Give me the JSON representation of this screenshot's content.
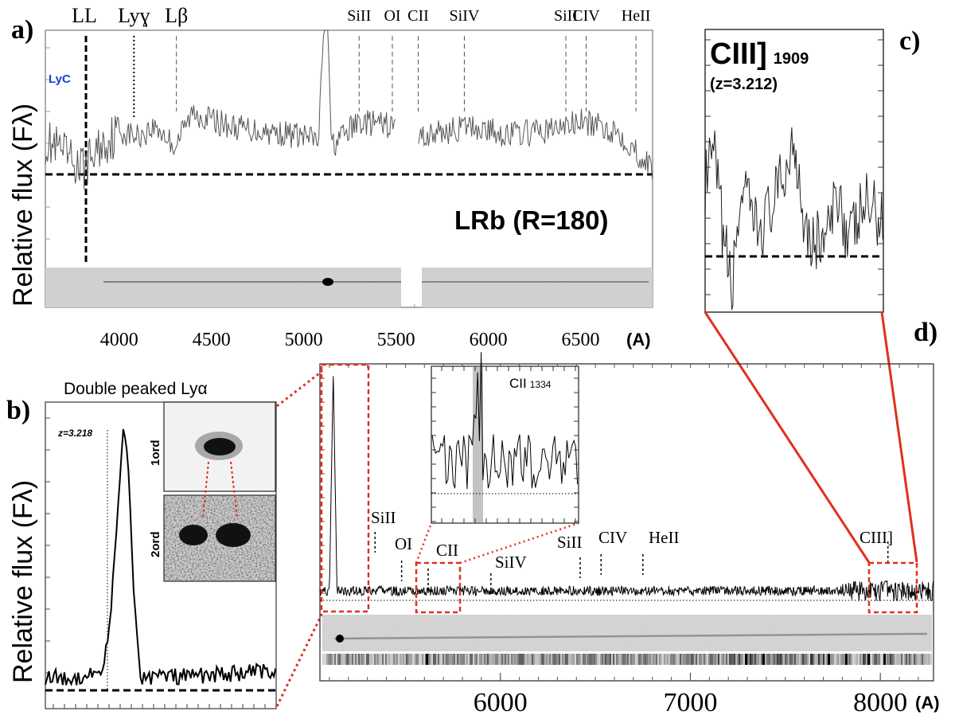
{
  "panel_labels": {
    "a": "a)",
    "b": "b)",
    "c": "c)",
    "d": "d)"
  },
  "y_axis_label": "Relative flux (Fλ)",
  "chart_data": [
    {
      "id": "a",
      "type": "line",
      "xlim": [
        3600,
        6890
      ],
      "xticks": [
        4000,
        4500,
        5000,
        5500,
        6000,
        6500
      ],
      "xtick_labels": [
        "4000",
        "4500",
        "5000",
        "5500",
        "6000",
        "6500"
      ],
      "x_unit": "(A)",
      "annotation": "LRb (R=180)",
      "lyc_label": "LyC",
      "lines": [
        {
          "label": "LL",
          "x": 3820,
          "style": "thick"
        },
        {
          "label": "Lyɣ",
          "x": 4080,
          "style": "dotted"
        },
        {
          "label": "Lβ",
          "x": 4310,
          "style": "dashed"
        },
        {
          "label": "SiII",
          "x": 5300,
          "style": "dashed"
        },
        {
          "label": "OI",
          "x": 5480,
          "style": "dashed"
        },
        {
          "label": "CII",
          "x": 5620,
          "style": "dashed"
        },
        {
          "label": "SiIV",
          "x": 5870,
          "style": "dashed"
        },
        {
          "label": "SiII",
          "x": 6420,
          "style": "dashed"
        },
        {
          "label": "CIV",
          "x": 6530,
          "style": "dashed"
        },
        {
          "label": "HeII",
          "x": 6800,
          "style": "dashed"
        }
      ],
      "continuum_level": 0.0,
      "spectrum_points": [
        [
          3600,
          0.35
        ],
        [
          3700,
          0.2
        ],
        [
          3800,
          0.05
        ],
        [
          3900,
          0.3
        ],
        [
          4000,
          0.45
        ],
        [
          4100,
          0.4
        ],
        [
          4200,
          0.5
        ],
        [
          4300,
          0.3
        ],
        [
          4400,
          0.65
        ],
        [
          4600,
          0.5
        ],
        [
          4800,
          0.45
        ],
        [
          5000,
          0.4
        ],
        [
          5080,
          0.35
        ],
        [
          5110,
          1.6
        ],
        [
          5130,
          1.6
        ],
        [
          5150,
          0.3
        ],
        [
          5300,
          0.55
        ],
        [
          5500,
          0.5
        ],
        [
          5520,
          0.35
        ],
        [
          5900,
          0.5
        ],
        [
          6100,
          0.42
        ],
        [
          6300,
          0.45
        ],
        [
          6500,
          0.55
        ],
        [
          6700,
          0.45
        ],
        [
          6890,
          0.05
        ]
      ],
      "gap": [
        5500,
        5620
      ]
    },
    {
      "id": "b",
      "type": "line",
      "title": "Double peaked Lyα",
      "redshift": "z=3.218",
      "stamp_labels": [
        "1ord",
        "2ord"
      ],
      "peak_x": 0.34,
      "spectrum_points": [
        [
          0.0,
          0.05
        ],
        [
          0.1,
          0.04
        ],
        [
          0.2,
          0.06
        ],
        [
          0.25,
          0.08
        ],
        [
          0.28,
          0.25
        ],
        [
          0.31,
          0.6
        ],
        [
          0.33,
          0.85
        ],
        [
          0.34,
          0.98
        ],
        [
          0.36,
          0.8
        ],
        [
          0.38,
          0.4
        ],
        [
          0.41,
          0.05
        ],
        [
          0.6,
          0.05
        ],
        [
          0.8,
          0.06
        ],
        [
          1.0,
          0.07
        ]
      ]
    },
    {
      "id": "c",
      "type": "line",
      "title": "CIII]",
      "title_sub": "1909",
      "redshift": "(z=3.212)",
      "spectrum_points": [
        [
          0.0,
          0.6
        ],
        [
          0.05,
          0.85
        ],
        [
          0.1,
          0.2
        ],
        [
          0.15,
          -0.3
        ],
        [
          0.2,
          0.55
        ],
        [
          0.3,
          0.2
        ],
        [
          0.4,
          0.5
        ],
        [
          0.45,
          0.7
        ],
        [
          0.5,
          1.0
        ],
        [
          0.55,
          0.4
        ],
        [
          0.6,
          0.1
        ],
        [
          0.7,
          0.2
        ],
        [
          0.75,
          0.6
        ],
        [
          0.8,
          0.1
        ],
        [
          0.9,
          0.45
        ],
        [
          1.0,
          0.3
        ]
      ]
    },
    {
      "id": "d",
      "type": "line",
      "xlim": [
        5050,
        8280
      ],
      "xticks": [
        6000,
        7000,
        8000
      ],
      "xtick_labels": [
        "6000",
        "7000",
        "8000"
      ],
      "x_unit": "(A)",
      "lines": [
        {
          "label": "SiII",
          "x": 5340
        },
        {
          "label": "OI",
          "x": 5480
        },
        {
          "label": "CII",
          "x": 5620
        },
        {
          "label": "SiIV",
          "x": 5950
        },
        {
          "label": "SiII",
          "x": 6420
        },
        {
          "label": "CIV",
          "x": 6530
        },
        {
          "label": "HeII",
          "x": 6750
        },
        {
          "label": "CIII]",
          "x": 8040
        }
      ],
      "inset": {
        "label": "CII",
        "label_sub": "1334"
      },
      "peak_x": 5120
    }
  ]
}
